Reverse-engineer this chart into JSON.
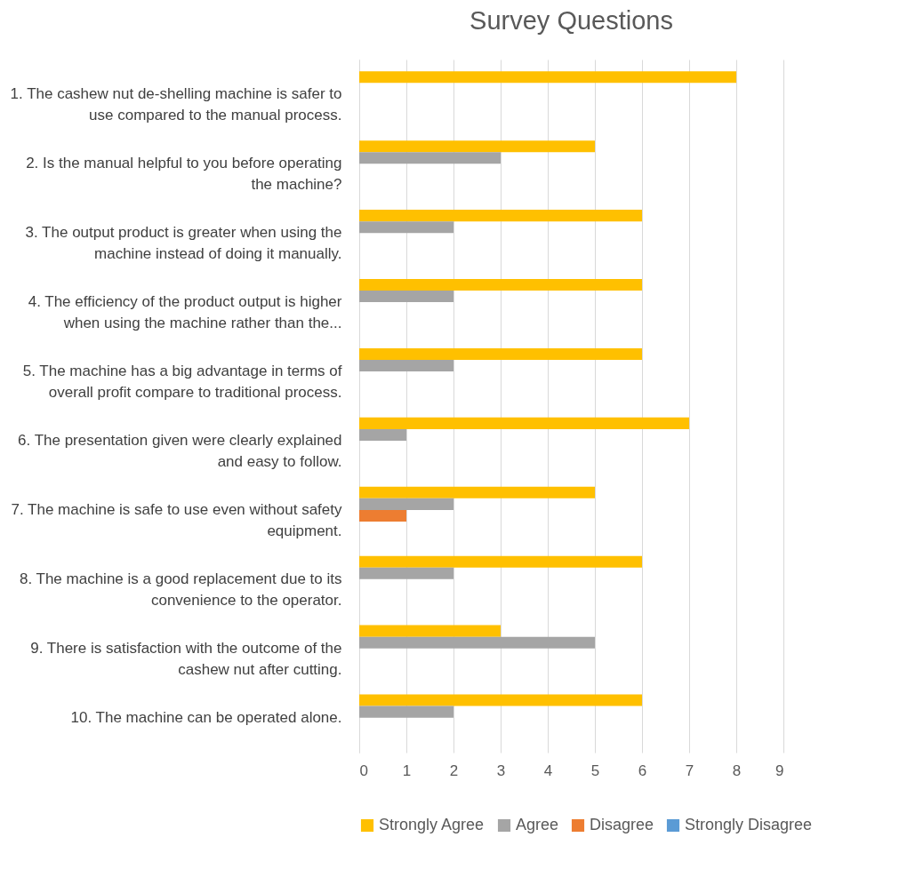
{
  "chart_data": {
    "type": "bar",
    "orientation": "horizontal",
    "title": "Survey Questions",
    "categories": [
      "1. The cashew nut de-shelling machine is safer to use compared to the manual process.",
      "2. Is the manual helpful to you before operating the machine?",
      "3. The output product is greater when using the machine instead of doing it manually.",
      "4. The efficiency of the product output is higher when using the machine rather than the...",
      "5. The machine has a big advantage in terms of overall profit compare to traditional process.",
      "6. The presentation given were clearly explained and easy to follow.",
      "7. The machine is safe to use even without safety equipment.",
      "8. The machine is a good replacement due to its convenience to the operator.",
      "9. There is satisfaction with the outcome of the cashew nut after cutting.",
      "10. The machine can be operated alone."
    ],
    "series": [
      {
        "name": "Strongly Agree",
        "color": "#ffc000",
        "values": [
          8,
          5,
          6,
          6,
          6,
          7,
          5,
          6,
          3,
          6
        ]
      },
      {
        "name": "Agree",
        "color": "#a5a5a5",
        "values": [
          0,
          3,
          2,
          2,
          2,
          1,
          2,
          2,
          5,
          2
        ]
      },
      {
        "name": "Disagree",
        "color": "#ed7d31",
        "values": [
          0,
          0,
          0,
          0,
          0,
          0,
          1,
          0,
          0,
          0
        ]
      },
      {
        "name": "Strongly Disagree",
        "color": "#5b9bd5",
        "values": [
          0,
          0,
          0,
          0,
          0,
          0,
          0,
          0,
          0,
          0
        ]
      }
    ],
    "xlim": [
      0,
      9
    ],
    "xticks": [
      0,
      1,
      2,
      3,
      4,
      5,
      6,
      7,
      8,
      9
    ],
    "grid": "x",
    "legend": "bottom"
  }
}
